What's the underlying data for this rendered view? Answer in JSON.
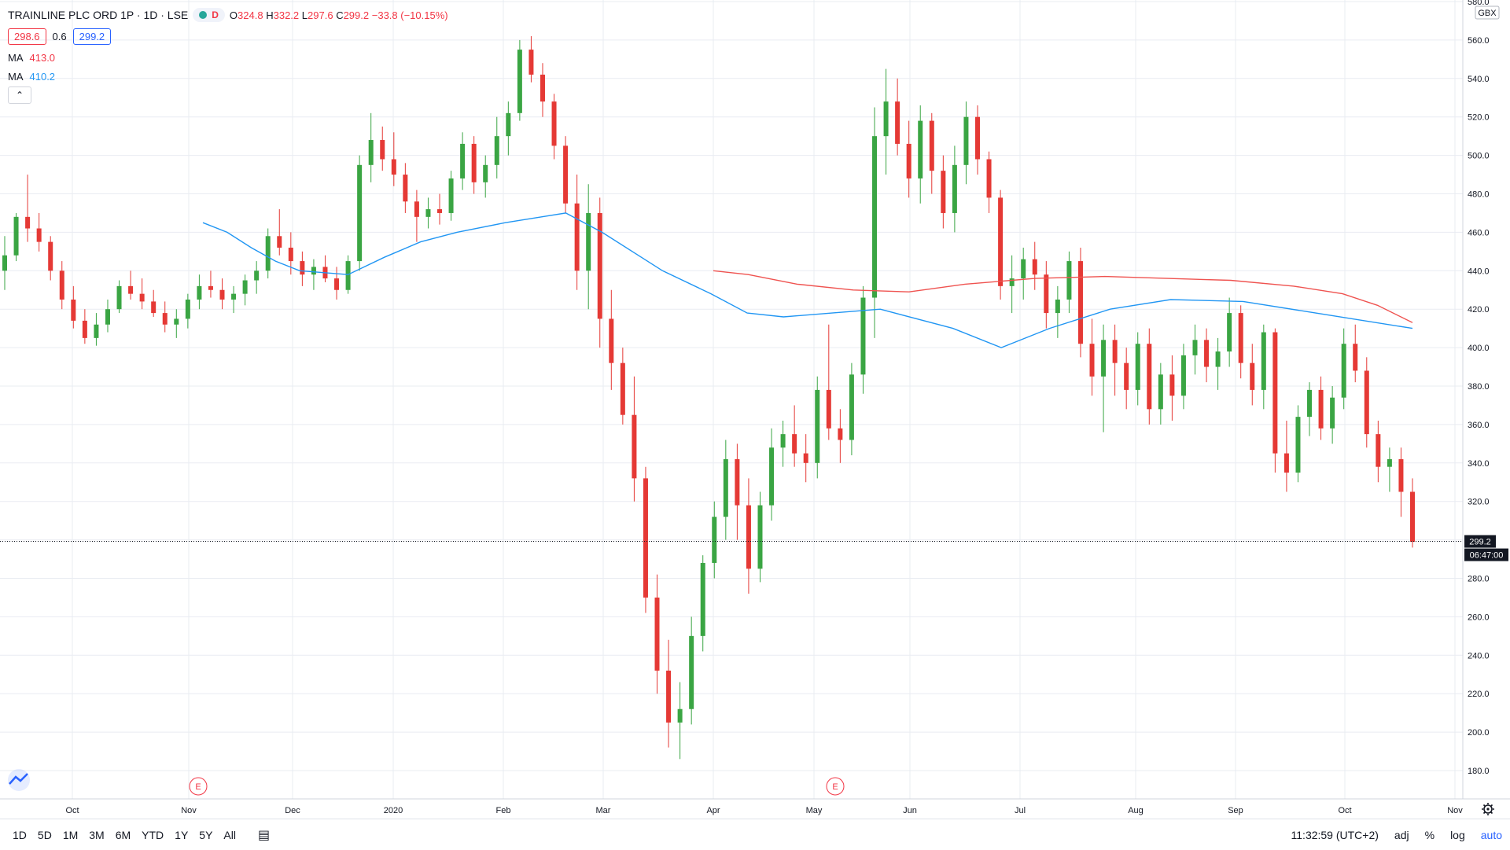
{
  "header": {
    "symbol": "TRAINLINE PLC ORD 1P · 1D · LSE",
    "d_label": "D",
    "ohlc": {
      "o_label": "O",
      "o": "324.8",
      "h_label": "H",
      "h": "332.2",
      "l_label": "L",
      "l": "297.6",
      "c_label": "C",
      "c": "299.2",
      "change": "−33.8 (−10.15%)"
    },
    "bid": "298.6",
    "spread": "0.6",
    "ask": "299.2"
  },
  "indicators": [
    {
      "label": "MA",
      "value": "413.0",
      "color": "#f23645"
    },
    {
      "label": "MA",
      "value": "410.2",
      "color": "#2196f3"
    }
  ],
  "colors": {
    "up": "#26a69a",
    "up_bar": "#3aa543",
    "down": "#e53935",
    "ma_red": "#ef5350",
    "ma_blue": "#2196f3",
    "grid": "#e9ecf2",
    "accent": "#2962ff"
  },
  "chart_data": {
    "type": "candlestick",
    "currency": "GBX",
    "y_ticks": [
      "580.0",
      "560.0",
      "540.0",
      "520.0",
      "500.0",
      "480.0",
      "460.0",
      "440.0",
      "420.0",
      "400.0",
      "380.0",
      "360.0",
      "340.0",
      "320.0",
      "300.0",
      "280.0",
      "260.0",
      "240.0",
      "220.0",
      "200.0",
      "180.0"
    ],
    "ylim": [
      172,
      582
    ],
    "x_tick_labels": [
      "Oct",
      "Nov",
      "Dec",
      "2020",
      "Feb",
      "Mar",
      "Apr",
      "May",
      "Jun",
      "Jul",
      "Aug",
      "Sep",
      "Oct",
      "Nov"
    ],
    "earnings_markers": [
      "E",
      "E"
    ],
    "last_price": "299.2",
    "countdown": "06:47:00",
    "ma_red_points": [
      [
        440,
        0
      ],
      [
        438,
        0.05
      ],
      [
        433,
        0.12
      ],
      [
        430,
        0.2
      ],
      [
        429,
        0.28
      ],
      [
        433,
        0.36
      ],
      [
        436,
        0.46
      ],
      [
        437,
        0.56
      ],
      [
        436,
        0.65
      ],
      [
        435,
        0.74
      ],
      [
        432,
        0.83
      ],
      [
        428,
        0.9
      ],
      [
        422,
        0.95
      ],
      [
        413,
        1
      ]
    ],
    "ma_blue_points": [
      [
        465,
        0
      ],
      [
        460,
        0.02
      ],
      [
        452,
        0.04
      ],
      [
        445,
        0.06
      ],
      [
        440,
        0.08
      ],
      [
        438,
        0.12
      ],
      [
        447,
        0.15
      ],
      [
        455,
        0.18
      ],
      [
        460,
        0.21
      ],
      [
        465,
        0.25
      ],
      [
        468,
        0.28
      ],
      [
        470,
        0.3
      ],
      [
        460,
        0.33
      ],
      [
        440,
        0.38
      ],
      [
        428,
        0.42
      ],
      [
        418,
        0.45
      ],
      [
        416,
        0.48
      ],
      [
        418,
        0.52
      ],
      [
        420,
        0.56
      ],
      [
        410,
        0.62
      ],
      [
        400,
        0.66
      ],
      [
        410,
        0.7
      ],
      [
        420,
        0.75
      ],
      [
        425,
        0.8
      ],
      [
        424,
        0.86
      ],
      [
        418,
        0.92
      ],
      [
        410,
        1
      ]
    ],
    "candles": [
      [
        440,
        458,
        430,
        448
      ],
      [
        448,
        470,
        445,
        468
      ],
      [
        468,
        490,
        455,
        462
      ],
      [
        462,
        470,
        450,
        455
      ],
      [
        455,
        458,
        435,
        440
      ],
      [
        440,
        445,
        420,
        425
      ],
      [
        425,
        432,
        410,
        414
      ],
      [
        414,
        420,
        402,
        405
      ],
      [
        405,
        418,
        401,
        412
      ],
      [
        412,
        425,
        408,
        420
      ],
      [
        420,
        435,
        418,
        432
      ],
      [
        432,
        440,
        425,
        428
      ],
      [
        428,
        436,
        420,
        424
      ],
      [
        424,
        430,
        416,
        418
      ],
      [
        418,
        424,
        408,
        412
      ],
      [
        412,
        420,
        405,
        415
      ],
      [
        415,
        428,
        410,
        425
      ],
      [
        425,
        438,
        420,
        432
      ],
      [
        432,
        440,
        426,
        430
      ],
      [
        430,
        436,
        420,
        425
      ],
      [
        425,
        432,
        418,
        428
      ],
      [
        428,
        438,
        422,
        435
      ],
      [
        435,
        445,
        428,
        440
      ],
      [
        440,
        462,
        436,
        458
      ],
      [
        458,
        472,
        448,
        452
      ],
      [
        452,
        460,
        438,
        445
      ],
      [
        445,
        450,
        432,
        438
      ],
      [
        438,
        446,
        430,
        442
      ],
      [
        442,
        448,
        434,
        436
      ],
      [
        436,
        442,
        425,
        430
      ],
      [
        430,
        448,
        428,
        445
      ],
      [
        445,
        500,
        440,
        495
      ],
      [
        495,
        522,
        486,
        508
      ],
      [
        508,
        515,
        492,
        498
      ],
      [
        498,
        512,
        484,
        490
      ],
      [
        490,
        496,
        470,
        476
      ],
      [
        476,
        482,
        455,
        468
      ],
      [
        468,
        478,
        462,
        472
      ],
      [
        472,
        480,
        464,
        470
      ],
      [
        470,
        492,
        466,
        488
      ],
      [
        488,
        512,
        482,
        506
      ],
      [
        506,
        510,
        480,
        486
      ],
      [
        486,
        500,
        478,
        495
      ],
      [
        495,
        520,
        488,
        510
      ],
      [
        510,
        528,
        500,
        522
      ],
      [
        522,
        560,
        518,
        555
      ],
      [
        555,
        562,
        538,
        542
      ],
      [
        542,
        548,
        520,
        528
      ],
      [
        528,
        532,
        498,
        505
      ],
      [
        505,
        510,
        470,
        475
      ],
      [
        475,
        490,
        430,
        440
      ],
      [
        440,
        485,
        420,
        470
      ],
      [
        470,
        478,
        400,
        415
      ],
      [
        415,
        430,
        378,
        392
      ],
      [
        392,
        400,
        360,
        365
      ],
      [
        365,
        385,
        320,
        332
      ],
      [
        332,
        338,
        262,
        270
      ],
      [
        270,
        282,
        220,
        232
      ],
      [
        232,
        248,
        192,
        205
      ],
      [
        205,
        226,
        186,
        212
      ],
      [
        212,
        260,
        204,
        250
      ],
      [
        250,
        292,
        242,
        288
      ],
      [
        288,
        320,
        280,
        312
      ],
      [
        312,
        352,
        300,
        342
      ],
      [
        342,
        350,
        300,
        318
      ],
      [
        318,
        332,
        272,
        285
      ],
      [
        285,
        325,
        278,
        318
      ],
      [
        318,
        358,
        310,
        348
      ],
      [
        348,
        362,
        338,
        355
      ],
      [
        355,
        370,
        338,
        345
      ],
      [
        345,
        355,
        330,
        340
      ],
      [
        340,
        385,
        332,
        378
      ],
      [
        378,
        412,
        352,
        358
      ],
      [
        358,
        368,
        340,
        352
      ],
      [
        352,
        392,
        344,
        386
      ],
      [
        386,
        432,
        376,
        426
      ],
      [
        426,
        525,
        405,
        510
      ],
      [
        510,
        545,
        490,
        528
      ],
      [
        528,
        540,
        500,
        506
      ],
      [
        506,
        518,
        478,
        488
      ],
      [
        488,
        526,
        475,
        518
      ],
      [
        518,
        522,
        480,
        492
      ],
      [
        492,
        500,
        462,
        470
      ],
      [
        470,
        505,
        460,
        495
      ],
      [
        495,
        528,
        485,
        520
      ],
      [
        520,
        526,
        490,
        498
      ],
      [
        498,
        502,
        470,
        478
      ],
      [
        478,
        482,
        425,
        432
      ],
      [
        432,
        448,
        418,
        436
      ],
      [
        436,
        452,
        425,
        446
      ],
      [
        446,
        455,
        430,
        438
      ],
      [
        438,
        445,
        410,
        418
      ],
      [
        418,
        432,
        405,
        425
      ],
      [
        425,
        450,
        418,
        445
      ],
      [
        445,
        452,
        395,
        402
      ],
      [
        402,
        415,
        375,
        385
      ],
      [
        385,
        412,
        356,
        404
      ],
      [
        404,
        412,
        375,
        392
      ],
      [
        392,
        400,
        368,
        378
      ],
      [
        378,
        408,
        370,
        402
      ],
      [
        402,
        410,
        360,
        368
      ],
      [
        368,
        392,
        360,
        386
      ],
      [
        386,
        396,
        362,
        375
      ],
      [
        375,
        402,
        368,
        396
      ],
      [
        396,
        412,
        386,
        404
      ],
      [
        404,
        410,
        382,
        390
      ],
      [
        390,
        405,
        378,
        398
      ],
      [
        398,
        426,
        390,
        418
      ],
      [
        418,
        422,
        384,
        392
      ],
      [
        392,
        402,
        370,
        378
      ],
      [
        378,
        412,
        368,
        408
      ],
      [
        408,
        410,
        335,
        345
      ],
      [
        345,
        362,
        325,
        335
      ],
      [
        335,
        370,
        330,
        364
      ],
      [
        364,
        382,
        354,
        378
      ],
      [
        378,
        385,
        352,
        358
      ],
      [
        358,
        380,
        350,
        374
      ],
      [
        374,
        410,
        368,
        402
      ],
      [
        402,
        412,
        382,
        388
      ],
      [
        388,
        395,
        348,
        355
      ],
      [
        355,
        362,
        330,
        338
      ],
      [
        338,
        348,
        325,
        342
      ],
      [
        342,
        348,
        312,
        325
      ],
      [
        325,
        332,
        296,
        299
      ]
    ]
  },
  "bottombar": {
    "ranges": [
      "1D",
      "5D",
      "1M",
      "3M",
      "6M",
      "YTD",
      "1Y",
      "5Y",
      "All"
    ],
    "time": "11:32:59 (UTC+2)",
    "options": [
      "adj",
      "%",
      "log",
      "auto"
    ]
  }
}
